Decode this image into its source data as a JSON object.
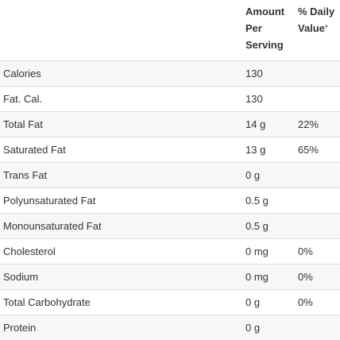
{
  "headers": {
    "nutrient": "",
    "amount": "Amount Per Serving",
    "daily_value": "% Daily Value",
    "daily_value_mark": "*"
  },
  "rows": [
    {
      "nutrient": "Calories",
      "amount": "130",
      "daily_value": ""
    },
    {
      "nutrient": "Fat. Cal.",
      "amount": "130",
      "daily_value": ""
    },
    {
      "nutrient": "Total Fat",
      "amount": "14 g",
      "daily_value": "22%"
    },
    {
      "nutrient": "Saturated Fat",
      "amount": "13 g",
      "daily_value": "65%"
    },
    {
      "nutrient": "Trans Fat",
      "amount": "0 g",
      "daily_value": ""
    },
    {
      "nutrient": "Polyunsaturated Fat",
      "amount": "0.5 g",
      "daily_value": ""
    },
    {
      "nutrient": "Monounsaturated Fat",
      "amount": "0.5 g",
      "daily_value": ""
    },
    {
      "nutrient": "Cholesterol",
      "amount": "0 mg",
      "daily_value": "0%"
    },
    {
      "nutrient": "Sodium",
      "amount": "0 mg",
      "daily_value": "0%"
    },
    {
      "nutrient": "Total Carbohydrate",
      "amount": "0 g",
      "daily_value": "0%"
    },
    {
      "nutrient": "Protein",
      "amount": "0 g",
      "daily_value": ""
    }
  ]
}
